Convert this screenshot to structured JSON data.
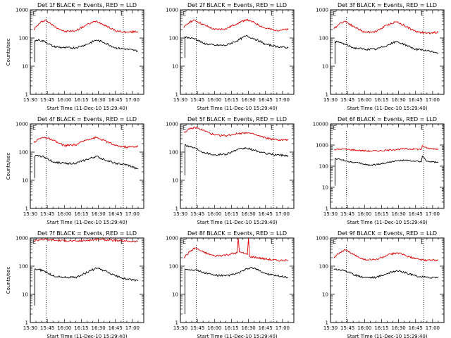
{
  "colors": {
    "events": "#000000",
    "lld": "#e00000",
    "axis": "#000000",
    "background": "#ffffff"
  },
  "chart_data": [
    {
      "type": "line",
      "title": "Det 1f BLACK = Events, RED = LLD",
      "xlabel": "Start Time (11-Dec-10 15:29:40)",
      "ylabel": "Counts/sec",
      "yscale": "log",
      "xlim": [
        "15:30",
        "17:10"
      ],
      "ylim": [
        1,
        1000
      ],
      "x_ticks": [
        "15:30",
        "15:45",
        "16:00",
        "16:15",
        "16:30",
        "16:45",
        "17:00"
      ],
      "y_ticks": [
        "1",
        "10",
        "100",
        "1000"
      ],
      "markers": {
        "left_label": "E",
        "right_label": "E",
        "left_time": "15:44",
        "right_time": "16:52"
      },
      "series": [
        {
          "color": "#e00000",
          "x": [
            "15:33",
            "15:38",
            "15:43",
            "15:50",
            "16:00",
            "16:10",
            "16:20",
            "16:28",
            "16:35",
            "16:45",
            "16:55",
            "17:05"
          ],
          "values": [
            200,
            330,
            440,
            280,
            170,
            180,
            300,
            400,
            300,
            180,
            160,
            170
          ]
        },
        {
          "color": "#000000",
          "spike": {
            "time": "15:34",
            "low": 14,
            "high": 80
          },
          "x": [
            "15:34",
            "15:38",
            "15:43",
            "15:50",
            "16:00",
            "16:10",
            "16:20",
            "16:28",
            "16:35",
            "16:45",
            "16:55",
            "17:05"
          ],
          "values": [
            80,
            85,
            75,
            50,
            45,
            45,
            60,
            85,
            70,
            45,
            40,
            35
          ]
        }
      ]
    },
    {
      "type": "line",
      "title": "Det 2f BLACK = Events, RED = LLD",
      "xlabel": "Start Time (11-Dec-10 15:29:40)",
      "ylabel": "",
      "yscale": "log",
      "xlim": [
        "15:30",
        "17:10"
      ],
      "ylim": [
        1,
        1000
      ],
      "x_ticks": [
        "15:30",
        "15:45",
        "16:00",
        "16:15",
        "16:30",
        "16:45",
        "17:00"
      ],
      "y_ticks": [
        "1",
        "10",
        "100",
        "1000"
      ],
      "markers": {
        "left_label": "E",
        "right_label": "E",
        "left_time": "15:44",
        "right_time": "16:52"
      },
      "series": [
        {
          "color": "#e00000",
          "x": [
            "15:33",
            "15:38",
            "15:43",
            "15:50",
            "16:00",
            "16:10",
            "16:20",
            "16:28",
            "16:35",
            "16:45",
            "16:55",
            "17:05"
          ],
          "values": [
            230,
            380,
            420,
            300,
            200,
            210,
            330,
            450,
            350,
            220,
            190,
            200
          ]
        },
        {
          "color": "#000000",
          "spike": {
            "time": "15:34",
            "low": 20,
            "high": 110
          },
          "x": [
            "15:34",
            "15:38",
            "15:43",
            "15:50",
            "16:00",
            "16:10",
            "16:20",
            "16:28",
            "16:35",
            "16:45",
            "16:55",
            "17:05"
          ],
          "values": [
            110,
            100,
            95,
            65,
            55,
            55,
            80,
            120,
            95,
            60,
            50,
            45
          ]
        }
      ]
    },
    {
      "type": "line",
      "title": "Det 3f BLACK = Events, RED = LLD",
      "xlabel": "Start Time (11-Dec-10 15:29:40)",
      "ylabel": "",
      "yscale": "log",
      "xlim": [
        "15:30",
        "17:10"
      ],
      "ylim": [
        1,
        1000
      ],
      "x_ticks": [
        "15:30",
        "15:45",
        "16:00",
        "16:15",
        "16:30",
        "16:45",
        "17:00"
      ],
      "y_ticks": [
        "1",
        "10",
        "100",
        "1000"
      ],
      "markers": {
        "left_label": "E",
        "right_label": "E",
        "left_time": "15:44",
        "right_time": "16:52"
      },
      "series": [
        {
          "color": "#e00000",
          "x": [
            "15:33",
            "15:38",
            "15:43",
            "15:50",
            "16:00",
            "16:10",
            "16:20",
            "16:28",
            "16:35",
            "16:45",
            "16:55",
            "17:05"
          ],
          "values": [
            210,
            330,
            400,
            260,
            160,
            170,
            290,
            380,
            280,
            170,
            150,
            160
          ]
        },
        {
          "color": "#000000",
          "spike": {
            "time": "15:34",
            "low": 12,
            "high": 75
          },
          "x": [
            "15:34",
            "15:38",
            "15:43",
            "15:50",
            "16:00",
            "16:10",
            "16:20",
            "16:28",
            "16:35",
            "16:45",
            "16:55",
            "17:05"
          ],
          "values": [
            75,
            70,
            60,
            45,
            40,
            40,
            55,
            75,
            60,
            40,
            35,
            30
          ]
        }
      ]
    },
    {
      "type": "line",
      "title": "Det 4f BLACK = Events, RED = LLD",
      "xlabel": "Start Time (11-Dec-10 15:29:40)",
      "ylabel": "Counts/sec",
      "yscale": "log",
      "xlim": [
        "15:30",
        "17:10"
      ],
      "ylim": [
        1,
        1000
      ],
      "x_ticks": [
        "15:30",
        "15:45",
        "16:00",
        "16:15",
        "16:30",
        "16:45",
        "17:00"
      ],
      "y_ticks": [
        "1",
        "10",
        "100",
        "1000"
      ],
      "markers": {
        "left_label": "E",
        "right_label": "E",
        "left_time": "15:44",
        "right_time": "16:52"
      },
      "series": [
        {
          "color": "#e00000",
          "x": [
            "15:33",
            "15:38",
            "15:43",
            "15:50",
            "16:00",
            "16:10",
            "16:20",
            "16:28",
            "16:35",
            "16:45",
            "16:55",
            "17:05"
          ],
          "values": [
            220,
            300,
            340,
            260,
            170,
            180,
            280,
            330,
            260,
            170,
            150,
            160
          ]
        },
        {
          "color": "#000000",
          "spike": {
            "time": "15:34",
            "low": 12,
            "high": 70
          },
          "x": [
            "15:34",
            "15:38",
            "15:43",
            "15:50",
            "16:00",
            "16:10",
            "16:20",
            "16:28",
            "16:35",
            "16:45",
            "16:55",
            "17:05"
          ],
          "values": [
            70,
            75,
            65,
            45,
            40,
            40,
            55,
            70,
            55,
            40,
            35,
            25
          ]
        }
      ]
    },
    {
      "type": "line",
      "title": "Det 5f BLACK = Events, RED = LLD",
      "xlabel": "Start Time (11-Dec-10 15:29:40)",
      "ylabel": "",
      "yscale": "log",
      "xlim": [
        "15:30",
        "17:10"
      ],
      "ylim": [
        1,
        1000
      ],
      "x_ticks": [
        "15:30",
        "15:45",
        "16:00",
        "16:15",
        "16:30",
        "16:45",
        "17:00"
      ],
      "y_ticks": [
        "1",
        "10",
        "100",
        "1000"
      ],
      "markers": {
        "left_label": "E",
        "right_label": "E",
        "left_time": "15:44",
        "right_time": "16:52"
      },
      "series": [
        {
          "color": "#e00000",
          "x": [
            "15:33",
            "15:38",
            "15:43",
            "15:50",
            "16:00",
            "16:10",
            "16:20",
            "16:28",
            "16:35",
            "16:45",
            "16:55",
            "17:05"
          ],
          "values": [
            500,
            650,
            750,
            600,
            400,
            380,
            450,
            500,
            420,
            320,
            270,
            270
          ]
        },
        {
          "color": "#000000",
          "spike": {
            "time": "15:34",
            "low": 15,
            "high": 180
          },
          "x": [
            "15:34",
            "15:38",
            "15:43",
            "15:50",
            "16:00",
            "16:10",
            "16:20",
            "16:28",
            "16:35",
            "16:45",
            "16:55",
            "17:05"
          ],
          "values": [
            180,
            160,
            140,
            100,
            80,
            85,
            120,
            140,
            115,
            90,
            80,
            75
          ]
        }
      ]
    },
    {
      "type": "line",
      "title": "Det 6f BLACK = Events, RED = LLD",
      "xlabel": "Start Time (11-Dec-10 15:29:40)",
      "ylabel": "",
      "yscale": "log",
      "xlim": [
        "15:30",
        "17:10"
      ],
      "ylim": [
        1,
        10000
      ],
      "x_ticks": [
        "15:30",
        "15:45",
        "16:00",
        "16:15",
        "16:30",
        "16:45",
        "17:00"
      ],
      "y_ticks": [
        "1",
        "10",
        "100",
        "1000",
        "10000"
      ],
      "markers": {
        "left_label": "E",
        "right_label": "E",
        "left_time": "15:44",
        "right_time": "16:52"
      },
      "series": [
        {
          "color": "#e00000",
          "x": [
            "15:33",
            "15:40",
            "15:45",
            "15:55",
            "16:05",
            "16:15",
            "16:25",
            "16:35",
            "16:45",
            "16:50",
            "16:51",
            "16:55",
            "17:05"
          ],
          "values": [
            600,
            650,
            620,
            560,
            520,
            540,
            600,
            660,
            640,
            620,
            950,
            700,
            640
          ]
        },
        {
          "color": "#000000",
          "spike": {
            "time": "15:34",
            "low": 12,
            "high": 230
          },
          "x": [
            "15:34",
            "15:40",
            "15:45",
            "15:55",
            "16:05",
            "16:15",
            "16:25",
            "16:35",
            "16:45",
            "16:50",
            "16:51",
            "16:55",
            "17:05"
          ],
          "values": [
            230,
            200,
            170,
            140,
            110,
            130,
            170,
            190,
            170,
            160,
            300,
            170,
            150
          ]
        }
      ]
    },
    {
      "type": "line",
      "title": "Det 7f BLACK = Events, RED = LLD",
      "xlabel": "Start Time (11-Dec-10 15:29:40)",
      "ylabel": "Counts/sec",
      "yscale": "log",
      "xlim": [
        "15:30",
        "17:10"
      ],
      "ylim": [
        1,
        1000
      ],
      "x_ticks": [
        "15:30",
        "15:45",
        "16:00",
        "16:15",
        "16:30",
        "16:45",
        "17:00"
      ],
      "y_ticks": [
        "1",
        "10",
        "100",
        "1000"
      ],
      "markers": {
        "left_label": "E",
        "right_label": "E",
        "left_time": "15:44",
        "right_time": "16:52"
      },
      "series": [
        {
          "color": "#e00000",
          "x": [
            "15:33",
            "15:40",
            "15:50",
            "16:00",
            "16:10",
            "16:20",
            "16:30",
            "16:40",
            "16:50",
            "17:05"
          ],
          "values": [
            800,
            900,
            850,
            800,
            780,
            820,
            900,
            850,
            780,
            750
          ]
        },
        {
          "color": "#000000",
          "spike": {
            "time": "15:34",
            "low": 4,
            "high": 80
          },
          "x": [
            "15:34",
            "15:38",
            "15:43",
            "15:50",
            "16:00",
            "16:10",
            "16:20",
            "16:28",
            "16:35",
            "16:45",
            "16:55",
            "17:05"
          ],
          "values": [
            80,
            75,
            65,
            45,
            40,
            40,
            60,
            85,
            70,
            45,
            35,
            30
          ]
        }
      ]
    },
    {
      "type": "line",
      "title": "Det 8f BLACK = Events, RED = LLD",
      "xlabel": "Start Time (11-Dec-10 15:29:40)",
      "ylabel": "",
      "yscale": "log",
      "xlim": [
        "15:30",
        "17:10"
      ],
      "ylim": [
        1,
        1000
      ],
      "x_ticks": [
        "15:30",
        "15:45",
        "16:00",
        "16:15",
        "16:30",
        "16:45",
        "17:00"
      ],
      "y_ticks": [
        "1",
        "10",
        "100",
        "1000"
      ],
      "markers": {
        "left_label": "E",
        "right_label": "E",
        "left_time": "15:44",
        "right_time": "16:52"
      },
      "series": [
        {
          "color": "#e00000",
          "x": [
            "15:33",
            "15:38",
            "15:43",
            "15:50",
            "16:00",
            "16:10",
            "16:20",
            "16:21",
            "16:22",
            "16:24",
            "16:29",
            "16:30",
            "16:31",
            "16:35",
            "16:45",
            "16:55",
            "17:05"
          ],
          "values": [
            200,
            320,
            450,
            320,
            230,
            250,
            300,
            1000,
            320,
            300,
            260,
            1000,
            220,
            210,
            180,
            160,
            160
          ]
        },
        {
          "color": "#000000",
          "spike": {
            "time": "15:34",
            "low": 2,
            "high": 80
          },
          "x": [
            "15:34",
            "15:38",
            "15:43",
            "15:50",
            "16:00",
            "16:10",
            "16:20",
            "16:32",
            "16:38",
            "16:45",
            "16:55",
            "17:05"
          ],
          "values": [
            80,
            75,
            75,
            60,
            48,
            45,
            55,
            90,
            75,
            55,
            45,
            40
          ]
        }
      ]
    },
    {
      "type": "line",
      "title": "Det 9f BLACK = Events, RED = LLD",
      "xlabel": "Start Time (11-Dec-10 15:29:40)",
      "ylabel": "",
      "yscale": "log",
      "xlim": [
        "15:30",
        "17:10"
      ],
      "ylim": [
        1,
        1000
      ],
      "x_ticks": [
        "15:30",
        "15:45",
        "16:00",
        "16:15",
        "16:30",
        "16:45",
        "17:00"
      ],
      "y_ticks": [
        "1",
        "10",
        "100",
        "1000"
      ],
      "markers": {
        "left_label": "E",
        "right_label": "E",
        "left_time": "15:44",
        "right_time": "16:52"
      },
      "series": [
        {
          "color": "#e00000",
          "x": [
            "15:33",
            "15:38",
            "15:43",
            "15:50",
            "16:00",
            "16:10",
            "16:20",
            "16:28",
            "16:35",
            "16:45",
            "16:55",
            "17:05"
          ],
          "values": [
            210,
            300,
            380,
            260,
            170,
            170,
            240,
            300,
            250,
            180,
            160,
            170
          ]
        },
        {
          "color": "#000000",
          "x": [
            "15:33",
            "15:38",
            "15:43",
            "15:50",
            "16:00",
            "16:10",
            "16:20",
            "16:28",
            "16:35",
            "16:45",
            "16:55",
            "17:05"
          ],
          "values": [
            80,
            75,
            70,
            50,
            40,
            40,
            55,
            70,
            60,
            45,
            40,
            40
          ]
        }
      ]
    }
  ]
}
